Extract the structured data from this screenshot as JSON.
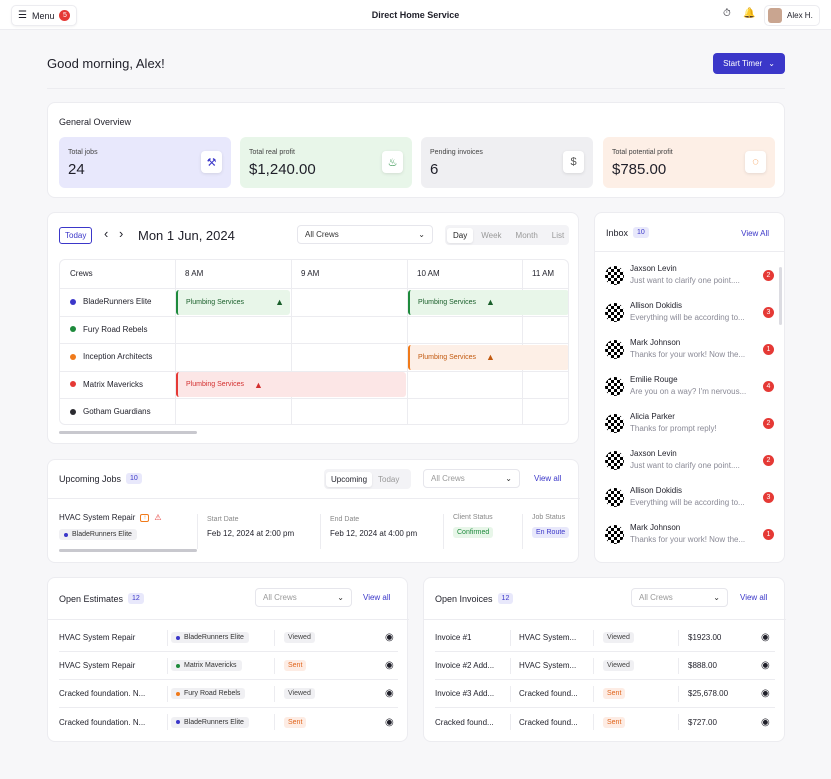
{
  "topbar": {
    "menu_label": "Menu",
    "menu_badge": "5",
    "title": "Direct Home Service",
    "user_name": "Alex H."
  },
  "greeting": "Good morning, Alex!",
  "start_timer": "Start Timer",
  "overview": {
    "title": "General Overview",
    "stats": [
      {
        "label": "Total jobs",
        "value": "24",
        "bg": "#e8e8fc",
        "icon": "hammer-icon"
      },
      {
        "label": "Total real profit",
        "value": "$1,240.00",
        "bg": "#e8f6e9",
        "icon": "flame-icon"
      },
      {
        "label": "Pending invoices",
        "value": "6",
        "bg": "#efeff2",
        "icon": "invoice-icon"
      },
      {
        "label": "Total potential profit",
        "value": "$785.00",
        "bg": "#fdefe6",
        "icon": "progress-icon"
      }
    ]
  },
  "calendar": {
    "today": "Today",
    "date": "Mon 1 Jun, 2024",
    "crew_filter": "All Crews",
    "views": [
      "Day",
      "Week",
      "Month",
      "List"
    ],
    "active_view": "Day",
    "columns": [
      "Crews",
      "8 AM",
      "9 AM",
      "10 AM",
      "11 AM"
    ],
    "crews": [
      {
        "name": "BladeRunners Elite",
        "color": "#3b37c9"
      },
      {
        "name": "Fury Road Rebels",
        "color": "#1e8a3c"
      },
      {
        "name": "Inception Architects",
        "color": "#f07a1a"
      },
      {
        "name": "Matrix Mavericks",
        "color": "#e53935"
      },
      {
        "name": "Gotham Guardians",
        "color": "#2b2b30"
      }
    ],
    "events": [
      {
        "label": "Plumbing Services",
        "crew": 0,
        "start": 8,
        "end": 9
      },
      {
        "label": "Plumbing Services",
        "crew": 0,
        "start": 10,
        "end": 11.5
      },
      {
        "label": "Plumbing Services",
        "crew": 2,
        "start": 10,
        "end": 11.5
      },
      {
        "label": "Plumbing Services",
        "crew": 3,
        "start": 8,
        "end": 10
      }
    ]
  },
  "inbox": {
    "title": "Inbox",
    "count": "10",
    "view_all": "View All",
    "items": [
      {
        "name": "Jaxson Levin",
        "preview": "Just want to clarify one point....",
        "count": "2"
      },
      {
        "name": "Allison Dokidis",
        "preview": "Everything will be according to...",
        "count": "3"
      },
      {
        "name": "Mark Johnson",
        "preview": "Thanks for your work! Now the...",
        "count": "1"
      },
      {
        "name": "Emilie Rouge",
        "preview": "Are you on a way? I'm nervous...",
        "count": "4"
      },
      {
        "name": "Alicia Parker",
        "preview": "Thanks for prompt reply!",
        "count": "2"
      },
      {
        "name": "Jaxson Levin",
        "preview": "Just want to clarify one point....",
        "count": "2"
      },
      {
        "name": "Allison Dokidis",
        "preview": "Everything will be according to...",
        "count": "3"
      },
      {
        "name": "Mark Johnson",
        "preview": "Thanks for your work! Now the...",
        "count": "1"
      }
    ]
  },
  "upcoming": {
    "title": "Upcoming Jobs",
    "count": "10",
    "tabs": [
      "Upcoming",
      "Today"
    ],
    "crew_filter": "All Crews",
    "view_all": "View all",
    "job": {
      "name": "HVAC System Repair",
      "crew": "BladeRunners Elite",
      "start_label": "Start Date",
      "start": "Feb 12, 2024 at 2:00 pm",
      "end_label": "End Date",
      "end": "Feb 12, 2024 at 4:00 pm",
      "client_label": "Client Status",
      "client_status": "Confirmed",
      "job_label": "Job Status",
      "job_status": "En Route"
    }
  },
  "estimates": {
    "title": "Open Estimates",
    "count": "12",
    "crew_filter": "All Crews",
    "view_all": "View all",
    "rows": [
      {
        "name": "HVAC System Repair",
        "crew": "BladeRunners Elite",
        "crew_color": "#3b37c9",
        "status": "Viewed"
      },
      {
        "name": "HVAC System Repair",
        "crew": "Matrix Mavericks",
        "crew_color": "#1e8a3c",
        "status": "Sent"
      },
      {
        "name": "Cracked foundation. N...",
        "crew": "Fury Road Rebels",
        "crew_color": "#f07a1a",
        "status": "Viewed"
      },
      {
        "name": "Cracked foundation. N...",
        "crew": "BladeRunners Elite",
        "crew_color": "#3b37c9",
        "status": "Sent"
      }
    ]
  },
  "invoices": {
    "title": "Open Invoices",
    "count": "12",
    "crew_filter": "All Crews",
    "view_all": "View all",
    "rows": [
      {
        "name": "Invoice #1",
        "job": "HVAC System...",
        "status": "Viewed",
        "amount": "$1923.00"
      },
      {
        "name": "Invoice #2 Add...",
        "job": "HVAC System...",
        "status": "Viewed",
        "amount": "$888.00"
      },
      {
        "name": "Invoice #3 Add...",
        "job": "Cracked found...",
        "status": "Sent",
        "amount": "$25,678.00"
      },
      {
        "name": "Cracked found...",
        "job": "Cracked found...",
        "status": "Sent",
        "amount": "$727.00"
      }
    ]
  }
}
